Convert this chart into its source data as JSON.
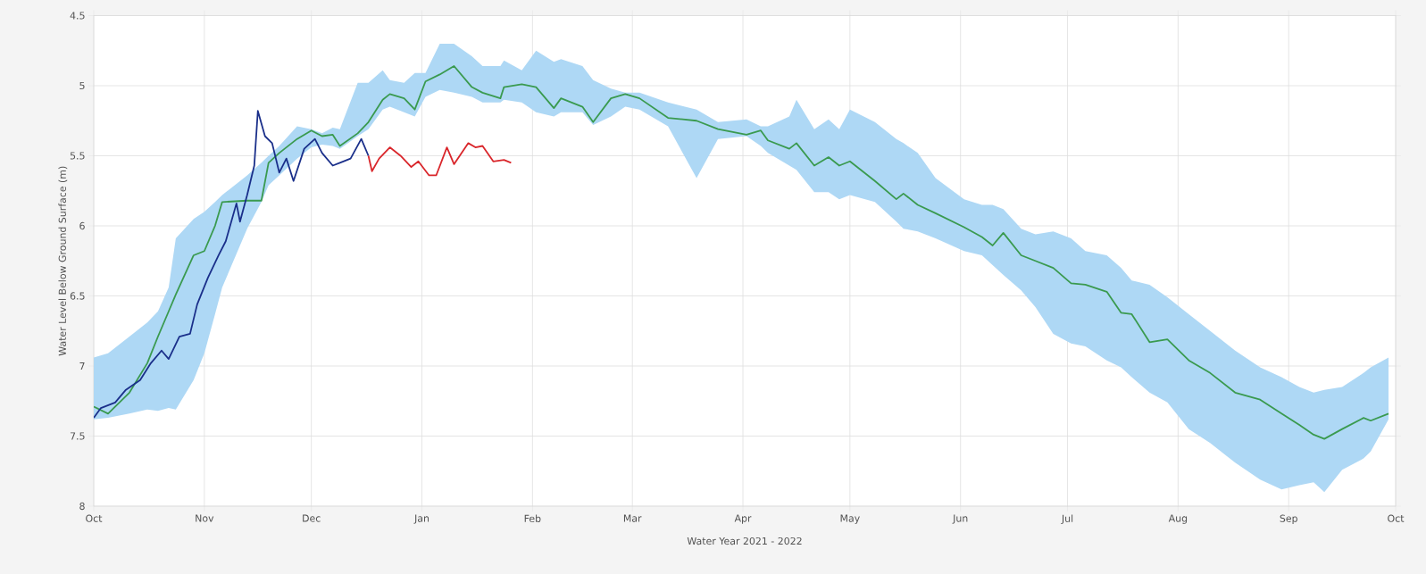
{
  "chart_data": {
    "type": "line",
    "xlabel": "Water Year 2021 - 2022",
    "ylabel": "Water Level Below Ground Surface (m)",
    "xlim": [
      "2021-10-01",
      "2022-10-01"
    ],
    "xticks": [
      {
        "value": "2021-10-01",
        "label": "Oct"
      },
      {
        "value": "2021-11-01",
        "label": "Nov"
      },
      {
        "value": "2021-12-01",
        "label": "Dec"
      },
      {
        "value": "2022-01-01",
        "label": "Jan"
      },
      {
        "value": "2022-02-01",
        "label": "Feb"
      },
      {
        "value": "2022-03-01",
        "label": "Mar"
      },
      {
        "value": "2022-04-01",
        "label": "Apr"
      },
      {
        "value": "2022-05-01",
        "label": "May"
      },
      {
        "value": "2022-06-01",
        "label": "Jun"
      },
      {
        "value": "2022-07-01",
        "label": "Jul"
      },
      {
        "value": "2022-08-01",
        "label": "Aug"
      },
      {
        "value": "2022-09-01",
        "label": "Sep"
      },
      {
        "value": "2022-10-01",
        "label": "Oct"
      }
    ],
    "ylim": [
      8,
      4.5
    ],
    "yticks": [
      4.5,
      5,
      5.5,
      6,
      6.5,
      7,
      7.5,
      8
    ],
    "grid": true,
    "series": [
      {
        "color": "#3a9a4f",
        "x": [
          "2021-10-01",
          "2021-10-05",
          "2021-10-11",
          "2021-10-16",
          "2021-10-19",
          "2021-10-22",
          "2021-10-24",
          "2021-10-29",
          "2021-11-01",
          "2021-11-04",
          "2021-11-06",
          "2021-11-13",
          "2021-11-17",
          "2021-11-19",
          "2021-11-22",
          "2021-11-27",
          "2021-12-01",
          "2021-12-04",
          "2021-12-07",
          "2021-12-09",
          "2021-12-14",
          "2021-12-17",
          "2021-12-21",
          "2021-12-23",
          "2021-12-27",
          "2021-12-30",
          "2022-01-02",
          "2022-01-06",
          "2022-01-10",
          "2022-01-15",
          "2022-01-18",
          "2022-01-23",
          "2022-01-24",
          "2022-01-29",
          "2022-02-02",
          "2022-02-07",
          "2022-02-09",
          "2022-02-15",
          "2022-02-18",
          "2022-02-23",
          "2022-02-27",
          "2022-03-03",
          "2022-03-11",
          "2022-03-19",
          "2022-03-25",
          "2022-04-02",
          "2022-04-06",
          "2022-04-08",
          "2022-04-14",
          "2022-04-16",
          "2022-04-21",
          "2022-04-25",
          "2022-04-28",
          "2022-05-01",
          "2022-05-08",
          "2022-05-14",
          "2022-05-16",
          "2022-05-20",
          "2022-05-25",
          "2022-06-02",
          "2022-06-07",
          "2022-06-10",
          "2022-06-13",
          "2022-06-18",
          "2022-06-22",
          "2022-06-27",
          "2022-07-02",
          "2022-07-06",
          "2022-07-12",
          "2022-07-16",
          "2022-07-19",
          "2022-07-24",
          "2022-07-29",
          "2022-08-04",
          "2022-08-10",
          "2022-08-17",
          "2022-08-24",
          "2022-08-30",
          "2022-09-04",
          "2022-09-08",
          "2022-09-11",
          "2022-09-16",
          "2022-09-22",
          "2022-09-24",
          "2022-09-29"
        ],
        "values": [
          7.29,
          7.34,
          7.19,
          6.98,
          6.79,
          6.61,
          6.49,
          6.21,
          6.18,
          6.0,
          5.83,
          5.82,
          5.82,
          5.55,
          5.48,
          5.38,
          5.32,
          5.36,
          5.35,
          5.43,
          5.34,
          5.26,
          5.1,
          5.06,
          5.09,
          5.17,
          4.97,
          4.92,
          4.86,
          5.01,
          5.05,
          5.09,
          5.01,
          4.99,
          5.01,
          5.16,
          5.09,
          5.15,
          5.26,
          5.09,
          5.06,
          5.09,
          5.23,
          5.25,
          5.31,
          5.35,
          5.32,
          5.39,
          5.45,
          5.41,
          5.57,
          5.51,
          5.57,
          5.54,
          5.68,
          5.81,
          5.77,
          5.85,
          5.91,
          6.01,
          6.08,
          6.14,
          6.05,
          6.21,
          6.25,
          6.3,
          6.41,
          6.42,
          6.47,
          6.62,
          6.63,
          6.83,
          6.81,
          6.96,
          7.05,
          7.19,
          7.24,
          7.34,
          7.42,
          7.49,
          7.52,
          7.45,
          7.37,
          7.39,
          7.34
        ],
        "lower": [
          6.94,
          6.91,
          6.79,
          6.69,
          6.61,
          6.44,
          6.09,
          5.95,
          5.9,
          5.83,
          5.78,
          5.64,
          5.55,
          5.5,
          5.43,
          5.29,
          5.31,
          5.34,
          5.3,
          5.31,
          4.98,
          4.98,
          4.89,
          4.96,
          4.98,
          4.91,
          4.91,
          4.7,
          4.7,
          4.79,
          4.86,
          4.86,
          4.82,
          4.89,
          4.75,
          4.83,
          4.81,
          4.86,
          4.96,
          5.02,
          5.05,
          5.05,
          5.12,
          5.17,
          5.26,
          5.24,
          5.29,
          5.29,
          5.22,
          5.1,
          5.31,
          5.24,
          5.31,
          5.17,
          5.26,
          5.38,
          5.41,
          5.48,
          5.66,
          5.81,
          5.85,
          5.85,
          5.88,
          6.02,
          6.06,
          6.04,
          6.09,
          6.18,
          6.21,
          6.3,
          6.39,
          6.42,
          6.51,
          6.63,
          6.75,
          6.89,
          7.01,
          7.08,
          7.15,
          7.19,
          7.17,
          7.15,
          7.05,
          7.01,
          6.94
        ],
        "upper": [
          7.38,
          7.37,
          7.34,
          7.31,
          7.32,
          7.3,
          7.31,
          7.1,
          6.91,
          6.63,
          6.44,
          6.02,
          5.83,
          5.71,
          5.64,
          5.52,
          5.44,
          5.42,
          5.43,
          5.45,
          5.36,
          5.31,
          5.17,
          5.15,
          5.19,
          5.22,
          5.08,
          5.03,
          5.05,
          5.08,
          5.12,
          5.12,
          5.1,
          5.12,
          5.19,
          5.22,
          5.19,
          5.19,
          5.28,
          5.22,
          5.15,
          5.17,
          5.29,
          5.66,
          5.38,
          5.36,
          5.43,
          5.48,
          5.57,
          5.6,
          5.76,
          5.76,
          5.81,
          5.78,
          5.83,
          5.97,
          6.02,
          6.04,
          6.09,
          6.18,
          6.21,
          6.28,
          6.35,
          6.46,
          6.58,
          6.77,
          6.84,
          6.86,
          6.96,
          7.01,
          7.08,
          7.19,
          7.26,
          7.45,
          7.55,
          7.69,
          7.81,
          7.88,
          7.85,
          7.83,
          7.9,
          7.74,
          7.66,
          7.61,
          7.38
        ]
      },
      {
        "color": "#1a2f8a",
        "x": [
          "2021-10-01",
          "2021-10-03",
          "2021-10-07",
          "2021-10-10",
          "2021-10-14",
          "2021-10-17",
          "2021-10-20",
          "2021-10-22",
          "2021-10-25",
          "2021-10-28",
          "2021-10-30",
          "2021-11-02",
          "2021-11-05",
          "2021-11-07",
          "2021-11-10",
          "2021-11-11",
          "2021-11-13",
          "2021-11-15",
          "2021-11-16",
          "2021-11-18",
          "2021-11-20",
          "2021-11-22",
          "2021-11-24",
          "2021-11-26",
          "2021-11-29",
          "2021-12-02",
          "2021-12-04",
          "2021-12-07",
          "2021-12-09",
          "2021-12-12",
          "2021-12-15",
          "2021-12-17"
        ],
        "values": [
          7.37,
          7.3,
          7.26,
          7.17,
          7.1,
          6.98,
          6.89,
          6.95,
          6.79,
          6.77,
          6.56,
          6.37,
          6.21,
          6.11,
          5.84,
          5.97,
          5.78,
          5.57,
          5.18,
          5.36,
          5.41,
          5.62,
          5.52,
          5.68,
          5.45,
          5.38,
          5.48,
          5.57,
          5.55,
          5.52,
          5.38,
          5.5
        ]
      },
      {
        "color": "#d9262b",
        "x": [
          "2021-12-17",
          "2021-12-18",
          "2021-12-20",
          "2021-12-23",
          "2021-12-26",
          "2021-12-29",
          "2021-12-31",
          "2022-01-03",
          "2022-01-05",
          "2022-01-08",
          "2022-01-10",
          "2022-01-14",
          "2022-01-16",
          "2022-01-18",
          "2022-01-21",
          "2022-01-24",
          "2022-01-26"
        ],
        "values": [
          5.5,
          5.61,
          5.52,
          5.44,
          5.5,
          5.58,
          5.54,
          5.64,
          5.64,
          5.44,
          5.56,
          5.41,
          5.44,
          5.43,
          5.54,
          5.53,
          5.55
        ]
      }
    ]
  }
}
